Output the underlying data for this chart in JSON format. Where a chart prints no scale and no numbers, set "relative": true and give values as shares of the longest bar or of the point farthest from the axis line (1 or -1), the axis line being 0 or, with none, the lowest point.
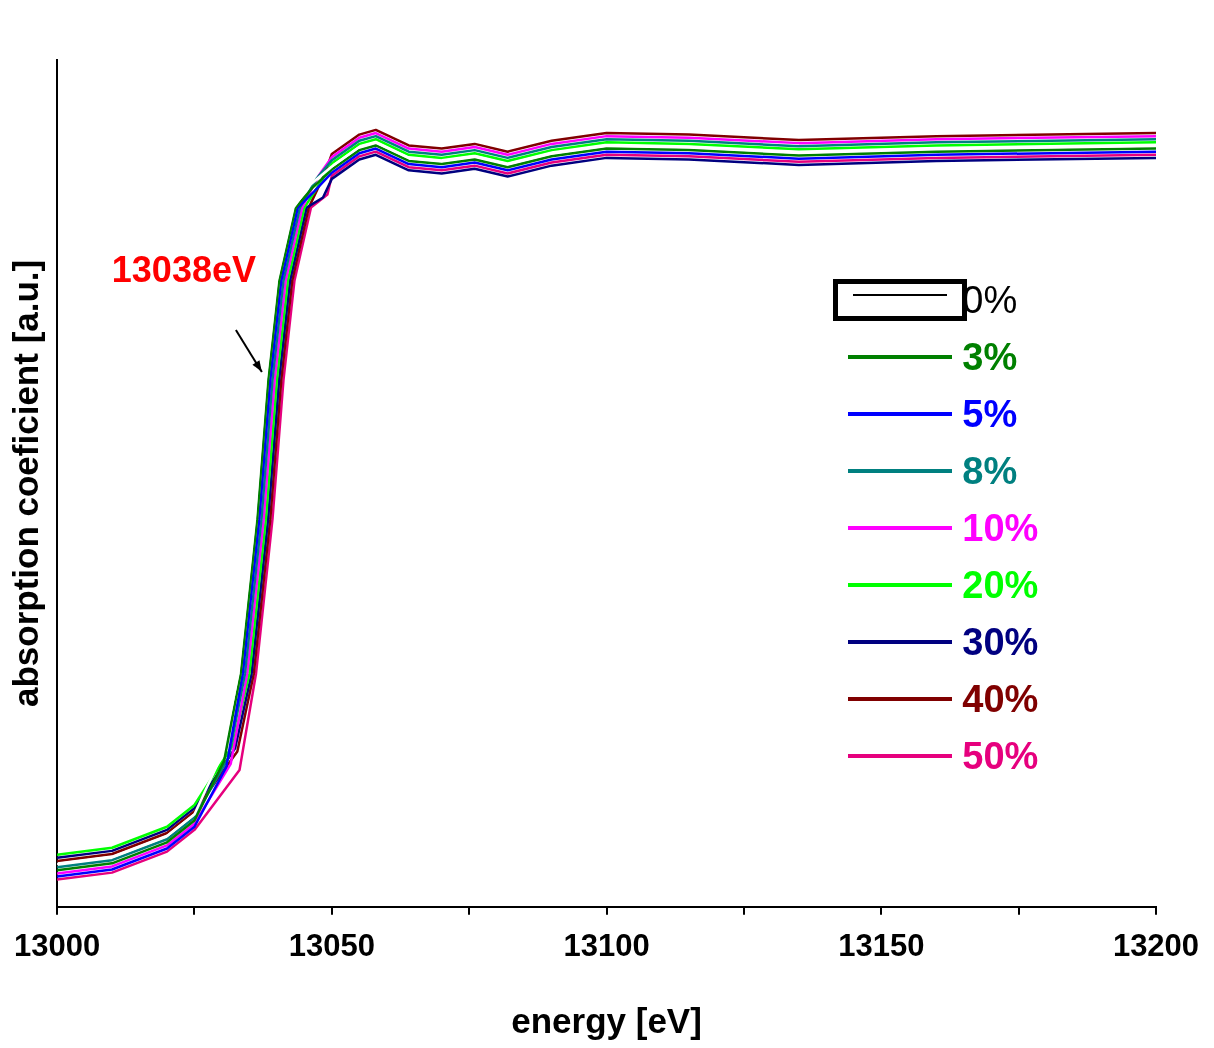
{
  "chart_data": {
    "type": "line",
    "xlabel": "energy [eV]",
    "ylabel": "absorption coeficient [a.u.]",
    "relative": true,
    "xlim": [
      13000,
      13200
    ],
    "xticks": [
      13000,
      {
        "value": 13025,
        "label": null
      },
      13050,
      {
        "value": 13075,
        "label": null
      },
      13100,
      {
        "value": 13125,
        "label": null
      },
      13150,
      {
        "value": 13175,
        "label": null
      },
      13200
    ],
    "grid": false,
    "legend": "right",
    "marker": "none",
    "line_style": "solid",
    "annotations": [
      {
        "text": "13038eV",
        "x": 13038,
        "y": 0.678
      }
    ],
    "series": [
      {
        "name": "0%",
        "color": "#ffffff",
        "x": [
          13000,
          13010,
          13020,
          13025,
          13030,
          13033,
          13036,
          13038,
          13040,
          13043,
          13046,
          13050,
          13055,
          13058,
          13064,
          13070,
          13076,
          13082,
          13090,
          13100,
          13115,
          13135,
          13160,
          13200
        ],
        "values": [
          0.055,
          0.064,
          0.091,
          0.119,
          0.196,
          0.3,
          0.499,
          0.678,
          0.806,
          0.9,
          0.929,
          0.953,
          0.978,
          0.984,
          0.964,
          0.96,
          0.966,
          0.956,
          0.97,
          0.98,
          0.978,
          0.971,
          0.976,
          0.98
        ]
      },
      {
        "name": "3%",
        "color": "#008000",
        "x": [
          13000,
          13010,
          13020,
          13025,
          13030.4,
          13033.4,
          13036.4,
          13038.4,
          13040.4,
          13043.4,
          13046.4,
          13050,
          13055,
          13058,
          13064,
          13070,
          13076,
          13082,
          13090,
          13100,
          13115,
          13135,
          13160,
          13200
        ],
        "values": [
          0.047,
          0.056,
          0.083,
          0.111,
          0.188,
          0.3,
          0.499,
          0.678,
          0.806,
          0.9,
          0.925,
          0.949,
          0.974,
          0.98,
          0.96,
          0.956,
          0.962,
          0.952,
          0.966,
          0.976,
          0.974,
          0.967,
          0.972,
          0.976
        ]
      },
      {
        "name": "5%",
        "color": "#0000ff",
        "x": [
          13000,
          13010,
          13020,
          13025,
          13030.8,
          13033.8,
          13036.8,
          13038.8,
          13040.8,
          13043.8,
          13046.8,
          13050,
          13055,
          13058,
          13064,
          13070,
          13076,
          13082,
          13090,
          13100,
          13115,
          13135,
          13160,
          13200
        ],
        "values": [
          0.039,
          0.048,
          0.075,
          0.103,
          0.18,
          0.3,
          0.499,
          0.678,
          0.806,
          0.9,
          0.921,
          0.945,
          0.97,
          0.976,
          0.956,
          0.952,
          0.958,
          0.948,
          0.962,
          0.972,
          0.97,
          0.963,
          0.968,
          0.972
        ]
      },
      {
        "name": "8%",
        "color": "#008080",
        "x": [
          13000,
          13010,
          13020,
          13025,
          13031.2,
          13034.2,
          13037.2,
          13039.2,
          13041.2,
          13044.2,
          13047.2,
          13050,
          13055,
          13058,
          13064,
          13070,
          13076,
          13082,
          13090,
          13100,
          13115,
          13135,
          13160,
          13200
        ],
        "values": [
          0.051,
          0.06,
          0.087,
          0.115,
          0.192,
          0.3,
          0.499,
          0.678,
          0.806,
          0.9,
          0.937,
          0.961,
          0.986,
          0.992,
          0.972,
          0.968,
          0.974,
          0.964,
          0.978,
          0.988,
          0.986,
          0.979,
          0.984,
          0.988
        ]
      },
      {
        "name": "10%",
        "color": "#ff00ff",
        "x": [
          13000,
          13010,
          13020,
          13025,
          13031.6,
          13034.6,
          13037.6,
          13039.6,
          13041.6,
          13044.6,
          13047.6,
          13050,
          13055,
          13058,
          13064,
          13070,
          13076,
          13082,
          13090,
          13100,
          13115,
          13135,
          13160,
          13200
        ],
        "values": [
          0.043,
          0.052,
          0.079,
          0.107,
          0.184,
          0.3,
          0.499,
          0.678,
          0.806,
          0.9,
          0.941,
          0.965,
          0.99,
          0.996,
          0.976,
          0.972,
          0.978,
          0.968,
          0.982,
          0.992,
          0.99,
          0.983,
          0.988,
          0.992
        ]
      },
      {
        "name": "20%",
        "color": "#00ff00",
        "x": [
          13000,
          13010,
          13020,
          13025,
          13032,
          13035,
          13038,
          13040,
          13042,
          13045,
          13048,
          13050,
          13055,
          13058,
          13064,
          13070,
          13076,
          13082,
          13090,
          13100,
          13115,
          13135,
          13160,
          13200
        ],
        "values": [
          0.067,
          0.076,
          0.103,
          0.131,
          0.208,
          0.3,
          0.499,
          0.678,
          0.806,
          0.9,
          0.933,
          0.957,
          0.982,
          0.988,
          0.968,
          0.964,
          0.97,
          0.96,
          0.974,
          0.984,
          0.982,
          0.975,
          0.98,
          0.984
        ]
      },
      {
        "name": "30%",
        "color": "#000080",
        "x": [
          13000,
          13010,
          13020,
          13025,
          13032.4,
          13035.4,
          13038.4,
          13040.4,
          13042.4,
          13045.4,
          13048.4,
          13050,
          13055,
          13058,
          13064,
          13070,
          13076,
          13082,
          13090,
          13100,
          13115,
          13135,
          13160,
          13200
        ],
        "values": [
          0.063,
          0.072,
          0.099,
          0.127,
          0.204,
          0.3,
          0.499,
          0.678,
          0.806,
          0.9,
          0.913,
          0.937,
          0.962,
          0.968,
          0.948,
          0.944,
          0.95,
          0.94,
          0.954,
          0.964,
          0.962,
          0.955,
          0.96,
          0.964
        ]
      },
      {
        "name": "40%",
        "color": "#800000",
        "x": [
          13000,
          13010,
          13020,
          13025,
          13032.8,
          13035.8,
          13038.8,
          13040.8,
          13042.8,
          13045.8,
          13048.8,
          13050,
          13055,
          13058,
          13064,
          13070,
          13076,
          13082,
          13090,
          13100,
          13115,
          13135,
          13160,
          13200
        ],
        "values": [
          0.059,
          0.068,
          0.095,
          0.123,
          0.2,
          0.3,
          0.499,
          0.678,
          0.806,
          0.9,
          0.945,
          0.969,
          0.994,
          1.0,
          0.98,
          0.976,
          0.982,
          0.972,
          0.986,
          0.996,
          0.994,
          0.987,
          0.992,
          0.996
        ]
      },
      {
        "name": "50%",
        "color": "#e6007e",
        "x": [
          13000,
          13010,
          13020,
          13025,
          13033.2,
          13036.2,
          13039.2,
          13041.2,
          13043.2,
          13046.2,
          13049.2,
          13050,
          13055,
          13058,
          13064,
          13070,
          13076,
          13082,
          13090,
          13100,
          13115,
          13135,
          13160,
          13200
        ],
        "values": [
          0.035,
          0.044,
          0.071,
          0.099,
          0.176,
          0.3,
          0.499,
          0.678,
          0.806,
          0.9,
          0.917,
          0.941,
          0.966,
          0.972,
          0.952,
          0.948,
          0.954,
          0.944,
          0.958,
          0.968,
          0.966,
          0.959,
          0.964,
          0.968
        ]
      }
    ]
  }
}
